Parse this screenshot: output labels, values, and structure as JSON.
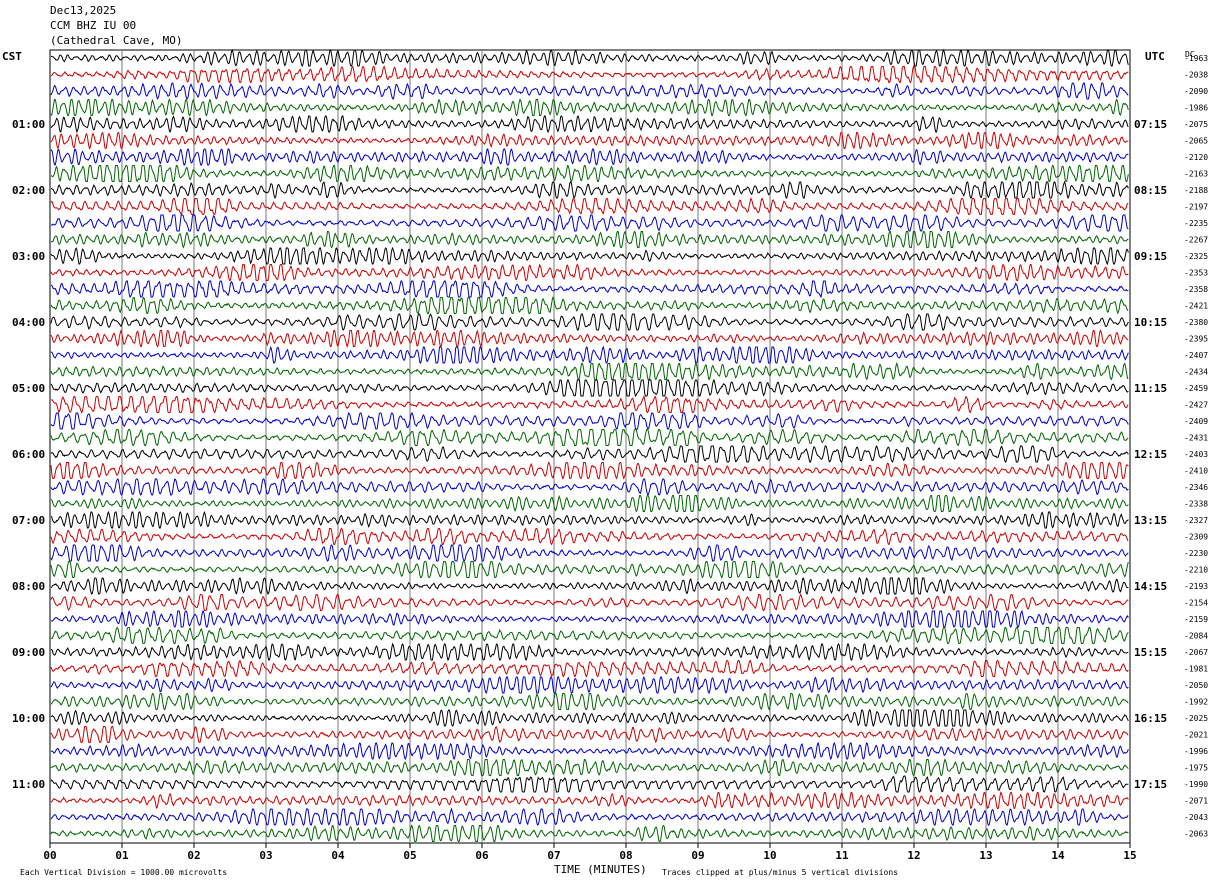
{
  "header": {
    "date": "Dec13,2025",
    "station": "CCM BHZ IU 00",
    "location": "(Cathedral Cave, MO)"
  },
  "left_tz_label": "CST",
  "right_tz_label": "UTC",
  "dc_label": "DC",
  "footer": {
    "scale_note": "Each Vertical Division = 1000.00 microvolts",
    "xlabel": "TIME (MINUTES)",
    "clip_note": "Traces clipped at plus/minus 5 vertical divisions"
  },
  "chart_data": {
    "type": "line",
    "title": "",
    "xlabel": "TIME (MINUTES)",
    "x_ticks": [
      "00",
      "01",
      "02",
      "03",
      "04",
      "05",
      "06",
      "07",
      "08",
      "09",
      "10",
      "11",
      "12",
      "13",
      "14",
      "15"
    ],
    "xlim": [
      0,
      15
    ],
    "rows_per_hour": 4,
    "trace_colors": [
      "#000000",
      "#cc0000",
      "#0000cc",
      "#006600"
    ],
    "left_hour_labels": [
      "01:00",
      "02:00",
      "03:00",
      "04:00",
      "05:00",
      "06:00",
      "07:00",
      "08:00",
      "09:00",
      "10:00",
      "11:00"
    ],
    "right_hour_labels": [
      "07:15",
      "08:15",
      "09:15",
      "10:15",
      "11:15",
      "12:15",
      "13:15",
      "14:15",
      "15:15",
      "16:15",
      "17:15"
    ],
    "dc_offsets": [
      "-1963",
      "-2038",
      "-2090",
      "-1986",
      "-2075",
      "-2065",
      "-2120",
      "-2163",
      "-2188",
      "-2197",
      "-2235",
      "-2267",
      "-2325",
      "-2353",
      "-2358",
      "-2421",
      "-2380",
      "-2395",
      "-2407",
      "-2434",
      "-2459",
      "-2427",
      "-2409",
      "-2431",
      "-2403",
      "-2410",
      "-2346",
      "-2338",
      "-2327",
      "-2309",
      "-2230",
      "-2210",
      "-2193",
      "-2154",
      "-2159",
      "-2084",
      "-2067",
      "-1981",
      "-2050",
      "-1992",
      "-2025",
      "-2021",
      "-1996",
      "-1975",
      "-1990",
      "-2071",
      "-2043",
      "-2063"
    ]
  }
}
